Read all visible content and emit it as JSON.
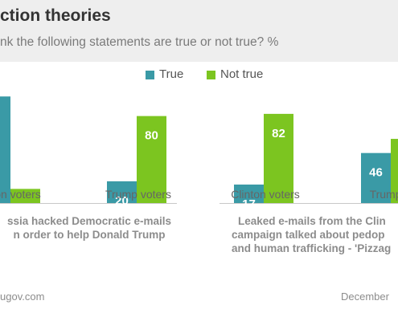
{
  "header": {
    "title": "ction theories",
    "subtitle": "nk the following statements are true or not true? %"
  },
  "legend": {
    "true_label": "True",
    "not_true_label": "Not true"
  },
  "colors": {
    "true": "#3a9aa6",
    "not_true": "#7cc520",
    "axis": "#c8c8c8",
    "header_bg": "#eeeeee"
  },
  "chart_data": {
    "type": "bar",
    "title": "ction theories",
    "categories": [
      "on voters",
      "Trump voters",
      "Clinton voters",
      "Trump v"
    ],
    "series": [
      {
        "name": "True",
        "values": [
          null,
          20,
          17,
          46
        ],
        "labels": [
          "7",
          "20",
          "17",
          "46"
        ]
      },
      {
        "name": "Not true",
        "values": [
          13,
          80,
          82,
          null
        ],
        "labels": [
          "13",
          "80",
          "82",
          ""
        ]
      }
    ],
    "ylim": [
      0,
      100
    ],
    "grid": false,
    "legend_position": "top-center"
  },
  "captions": {
    "left_line1": "ssia hacked Democratic e-mails",
    "left_line2": "n order to help Donald Trump",
    "right_line1": "Leaked e-mails from the Clin",
    "right_line2": "campaign talked about pedop",
    "right_line3": "and human trafficking - 'Pizzag"
  },
  "footer": {
    "source": "ugov.com",
    "date": "December"
  }
}
